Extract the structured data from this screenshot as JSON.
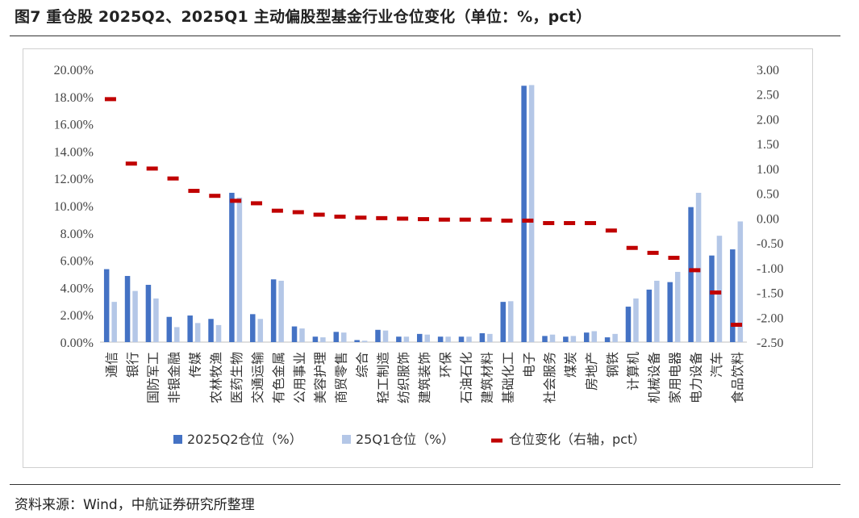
{
  "header": {
    "title": "图7  重仓股 2025Q2、2025Q1 主动偏股型基金行业仓位变化（单位：%，pct）"
  },
  "footer": {
    "source": "资料来源：Wind，中航证券研究所整理"
  },
  "colors": {
    "q2": "#4472C4",
    "q1": "#B4C7E7",
    "change": "#C00000"
  },
  "chart_data": {
    "type": "bar",
    "title": "",
    "xlabel": "",
    "ylabel": "",
    "ylim": [
      0,
      20
    ],
    "y2lim": [
      -2.5,
      3.0
    ],
    "y_tick_labels": [
      "0.00%",
      "2.00%",
      "4.00%",
      "6.00%",
      "8.00%",
      "10.00%",
      "12.00%",
      "14.00%",
      "16.00%",
      "18.00%",
      "20.00%"
    ],
    "y2_tick_labels": [
      "-2.50",
      "-2.00",
      "-1.50",
      "-1.00",
      "-0.50",
      "0.00",
      "0.50",
      "1.00",
      "1.50",
      "2.00",
      "2.50",
      "3.00"
    ],
    "grid": false,
    "legend_position": "bottom",
    "categories": [
      "通信",
      "银行",
      "国防军工",
      "非银金融",
      "传媒",
      "农林牧渔",
      "医药生物",
      "交通运输",
      "有色金属",
      "公用事业",
      "美容护理",
      "商贸零售",
      "综合",
      "轻工制造",
      "纺织服饰",
      "建筑装饰",
      "环保",
      "石油石化",
      "建筑材料",
      "基础化工",
      "电子",
      "社会服务",
      "煤炭",
      "房地产",
      "钢铁",
      "计算机",
      "机械设备",
      "家用电器",
      "电力设备",
      "汽车",
      "食品饮料"
    ],
    "series": [
      {
        "name": "2025Q2仓位（%）",
        "kind": "bar",
        "axis": "left",
        "values": [
          5.35,
          4.85,
          4.2,
          1.85,
          1.95,
          1.7,
          10.95,
          2.05,
          4.6,
          1.15,
          0.4,
          0.75,
          0.15,
          0.9,
          0.4,
          0.6,
          0.4,
          0.4,
          0.65,
          2.95,
          18.8,
          0.45,
          0.4,
          0.7,
          0.35,
          2.6,
          3.85,
          4.4,
          9.9,
          6.35,
          6.8
        ]
      },
      {
        "name": "25Q1仓位（%）",
        "kind": "bar",
        "axis": "left",
        "values": [
          2.95,
          3.75,
          3.2,
          1.1,
          1.4,
          1.25,
          10.6,
          1.7,
          4.5,
          1.0,
          0.35,
          0.7,
          0.1,
          0.85,
          0.4,
          0.55,
          0.4,
          0.4,
          0.6,
          3.0,
          18.85,
          0.55,
          0.45,
          0.8,
          0.6,
          3.2,
          4.5,
          5.15,
          10.95,
          7.8,
          8.85
        ]
      },
      {
        "name": "仓位变化（右轴，pct）",
        "kind": "marker",
        "axis": "right",
        "values": [
          2.4,
          1.1,
          1.0,
          0.8,
          0.55,
          0.45,
          0.35,
          0.3,
          0.15,
          0.12,
          0.07,
          0.03,
          0.01,
          0.0,
          -0.01,
          -0.02,
          -0.03,
          -0.03,
          -0.03,
          -0.05,
          -0.05,
          -0.1,
          -0.1,
          -0.1,
          -0.25,
          -0.6,
          -0.7,
          -0.8,
          -1.05,
          -1.5,
          -2.15
        ]
      }
    ]
  }
}
